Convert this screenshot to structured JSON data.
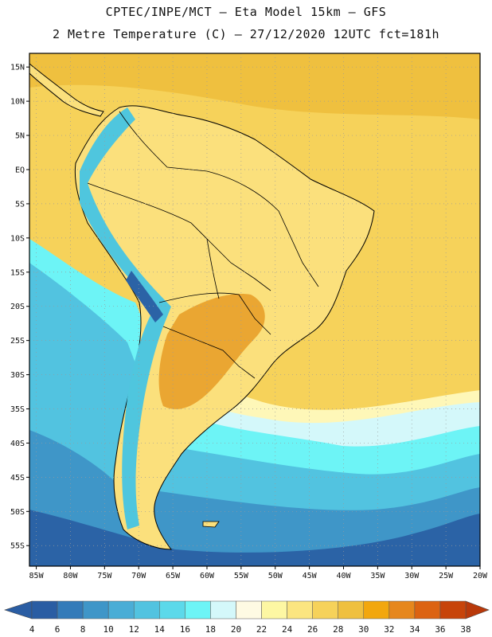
{
  "header": {
    "title_line1": "CPTEC/INPE/MCT –  Eta Model 15km – GFS",
    "title_line2": "2 Metre Temperature (C) – 27/12/2020 12UTC fct=181h"
  },
  "map": {
    "lon_range": [
      -86,
      -20
    ],
    "lat_range": [
      -58,
      17
    ],
    "lat_ticks": [
      {
        "value": 15,
        "label": "15N"
      },
      {
        "value": 10,
        "label": "10N"
      },
      {
        "value": 5,
        "label": "5N"
      },
      {
        "value": 0,
        "label": "EQ"
      },
      {
        "value": -5,
        "label": "5S"
      },
      {
        "value": -10,
        "label": "10S"
      },
      {
        "value": -15,
        "label": "15S"
      },
      {
        "value": -20,
        "label": "20S"
      },
      {
        "value": -25,
        "label": "25S"
      },
      {
        "value": -30,
        "label": "30S"
      },
      {
        "value": -35,
        "label": "35S"
      },
      {
        "value": -40,
        "label": "40S"
      },
      {
        "value": -45,
        "label": "45S"
      },
      {
        "value": -50,
        "label": "50S"
      },
      {
        "value": -55,
        "label": "55S"
      }
    ],
    "lon_ticks": [
      {
        "value": -85,
        "label": "85W"
      },
      {
        "value": -80,
        "label": "80W"
      },
      {
        "value": -75,
        "label": "75W"
      },
      {
        "value": -70,
        "label": "70W"
      },
      {
        "value": -65,
        "label": "65W"
      },
      {
        "value": -60,
        "label": "60W"
      },
      {
        "value": -55,
        "label": "55W"
      },
      {
        "value": -50,
        "label": "50W"
      },
      {
        "value": -45,
        "label": "45W"
      },
      {
        "value": -40,
        "label": "40W"
      },
      {
        "value": -35,
        "label": "35W"
      },
      {
        "value": -30,
        "label": "30W"
      },
      {
        "value": -25,
        "label": "25W"
      },
      {
        "value": -20,
        "label": "20W"
      }
    ],
    "colors": {
      "ocean_warm": "#f6d25a",
      "land": "#fbe07c",
      "hot": "#eaa632",
      "cool": "#4fc6de",
      "cold": "#2b63a6",
      "border": "#000000",
      "grid": "#9a9a9a"
    }
  },
  "colorbar": {
    "labels": [
      "4",
      "6",
      "8",
      "10",
      "12",
      "14",
      "16",
      "18",
      "20",
      "22",
      "24",
      "26",
      "28",
      "30",
      "32",
      "34",
      "36",
      "38"
    ],
    "colors": [
      "#2a5da3",
      "#347bb9",
      "#3f96c8",
      "#4aadd6",
      "#52c3e0",
      "#5cd9ea",
      "#6df4f6",
      "#d4f8fa",
      "#fefae3",
      "#fdf7a3",
      "#fbe580",
      "#f6d25a",
      "#efc03f",
      "#f2a70e",
      "#e6871d",
      "#dc6312",
      "#c7440a"
    ],
    "left_arrow_color": "#2a5da3",
    "right_arrow_color": "#b9390a"
  }
}
